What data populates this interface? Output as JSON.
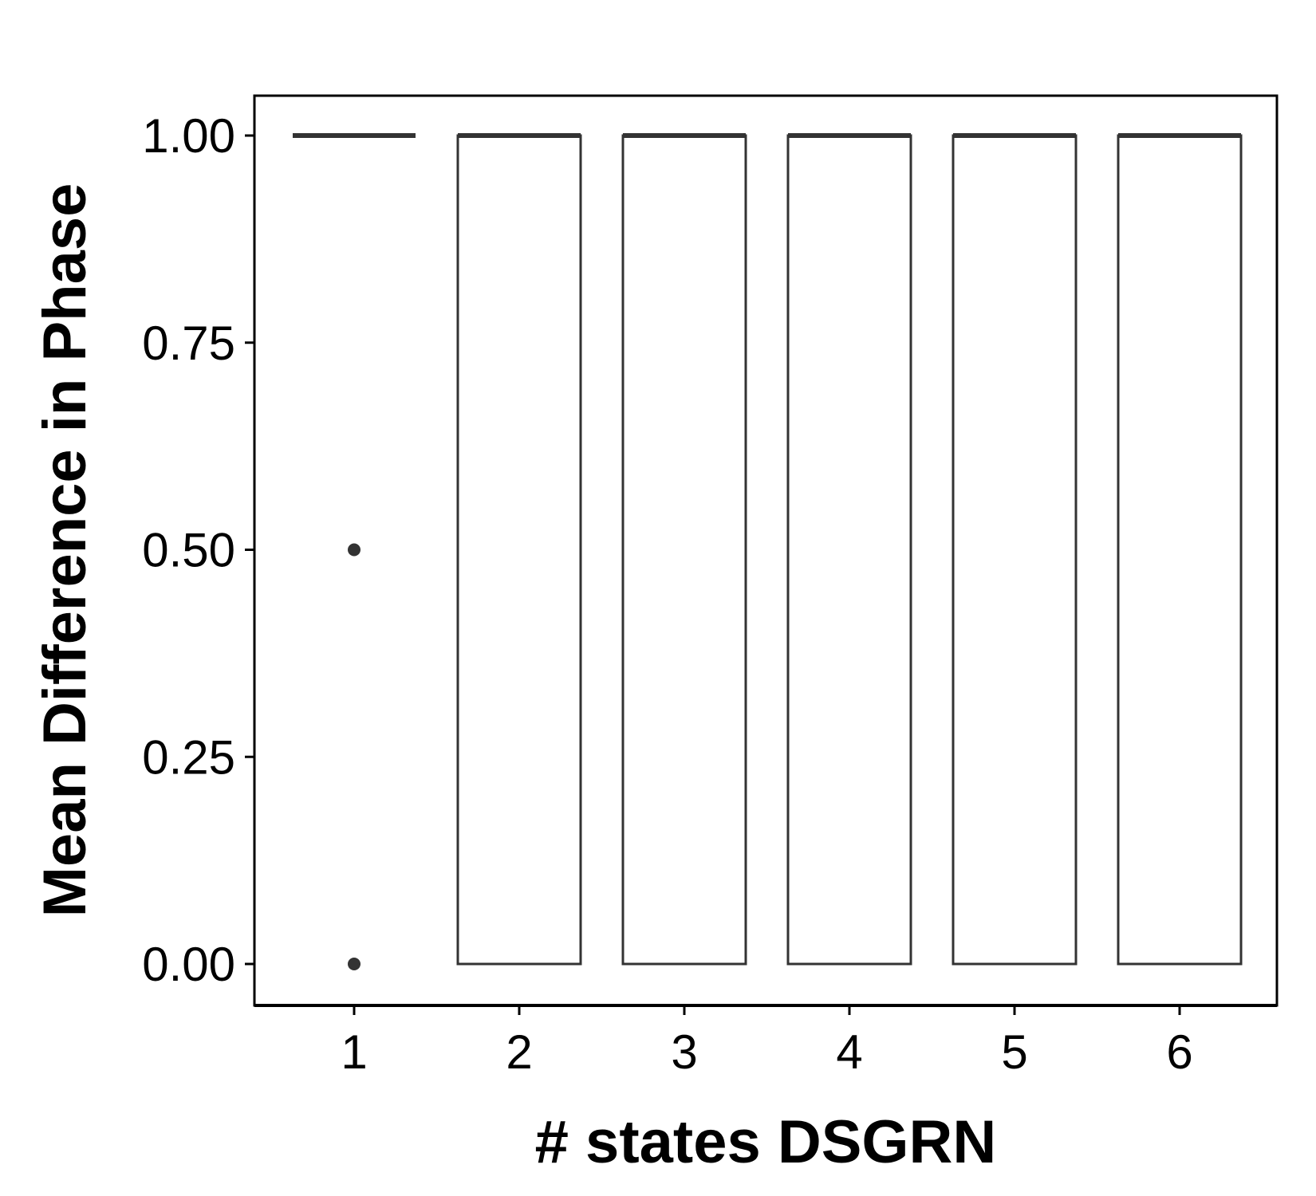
{
  "chart_data": {
    "type": "boxplot",
    "xlabel": "# states DSGRN",
    "ylabel": "Mean Difference in Phase",
    "categories": [
      "1",
      "2",
      "3",
      "4",
      "5",
      "6"
    ],
    "ylim": [
      -0.05,
      1.05
    ],
    "yticks": [
      0.0,
      0.25,
      0.5,
      0.75,
      1.0
    ],
    "ytick_labels": [
      "0.00",
      "0.25",
      "0.50",
      "0.75",
      "1.00"
    ],
    "grid": false,
    "boxes": [
      {
        "category": "1",
        "min": 1.0,
        "q1": 1.0,
        "median": 1.0,
        "q3": 1.0,
        "max": 1.0,
        "outliers": [
          0.5,
          0.0
        ]
      },
      {
        "category": "2",
        "min": 0.0,
        "q1": 0.0,
        "median": 1.0,
        "q3": 1.0,
        "max": 1.0,
        "outliers": []
      },
      {
        "category": "3",
        "min": 0.0,
        "q1": 0.0,
        "median": 1.0,
        "q3": 1.0,
        "max": 1.0,
        "outliers": []
      },
      {
        "category": "4",
        "min": 0.0,
        "q1": 0.0,
        "median": 1.0,
        "q3": 1.0,
        "max": 1.0,
        "outliers": []
      },
      {
        "category": "5",
        "min": 0.0,
        "q1": 0.0,
        "median": 1.0,
        "q3": 1.0,
        "max": 1.0,
        "outliers": []
      },
      {
        "category": "6",
        "min": 0.0,
        "q1": 0.0,
        "median": 1.0,
        "q3": 1.0,
        "max": 1.0,
        "outliers": []
      }
    ],
    "colors": {
      "box": "#333333",
      "fill": "#ffffff",
      "axis": "#000000"
    }
  }
}
